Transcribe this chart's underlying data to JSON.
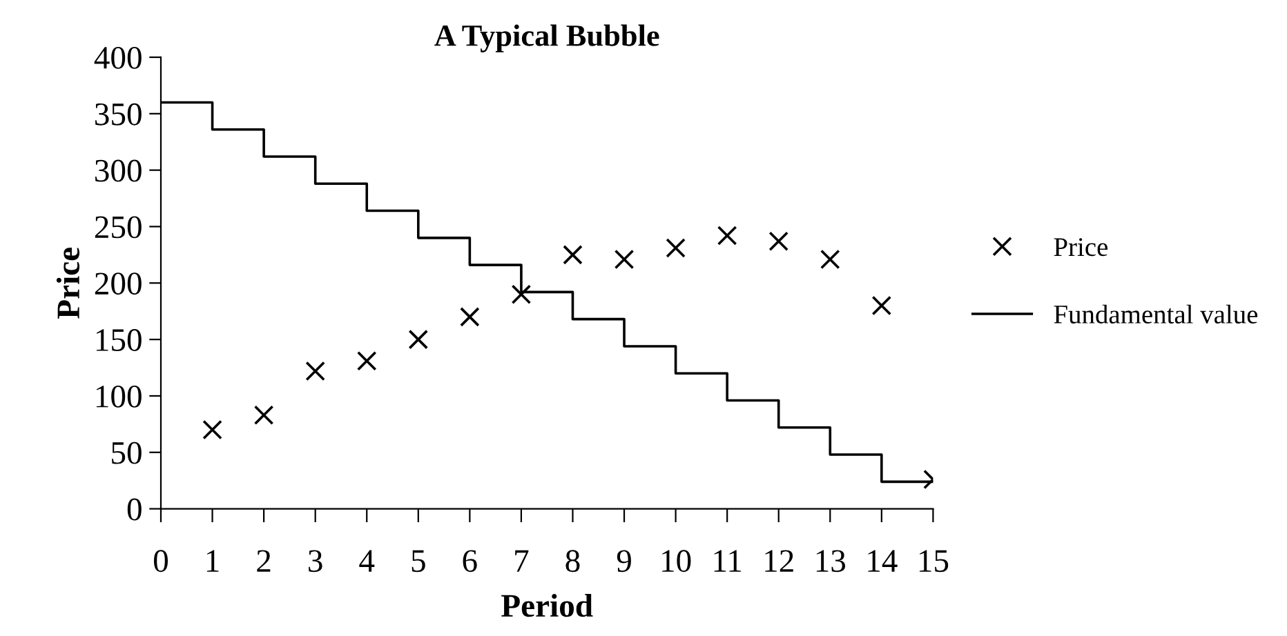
{
  "chart_data": {
    "type": "scatter",
    "title": "A Typical Bubble",
    "xlabel": "Period",
    "ylabel": "Price",
    "xlim": [
      0,
      15
    ],
    "xticks": [
      0,
      1,
      2,
      3,
      4,
      5,
      6,
      7,
      8,
      9,
      10,
      11,
      12,
      13,
      14,
      15
    ],
    "ylim": [
      0,
      400
    ],
    "yticks": [
      0,
      50,
      100,
      150,
      200,
      250,
      300,
      350,
      400
    ],
    "grid": false,
    "legend": "right",
    "series": [
      {
        "name": "Price",
        "marker": "cross",
        "color": "#000000",
        "x": [
          1,
          2,
          3,
          4,
          5,
          6,
          7,
          8,
          9,
          10,
          11,
          12,
          13,
          14,
          15
        ],
        "values": [
          70,
          83,
          122,
          131,
          150,
          170,
          190,
          225,
          221,
          231,
          242,
          237,
          221,
          180,
          26
        ]
      },
      {
        "name": "Fundamental value",
        "type": "step",
        "marker": "none",
        "line_style": "solid",
        "color": "#000000",
        "x": [
          0,
          1,
          2,
          3,
          4,
          5,
          6,
          7,
          8,
          9,
          10,
          11,
          12,
          13,
          14,
          15
        ],
        "values": [
          360,
          336,
          312,
          288,
          264,
          240,
          216,
          192,
          168,
          144,
          120,
          96,
          72,
          48,
          24,
          24
        ]
      }
    ]
  }
}
